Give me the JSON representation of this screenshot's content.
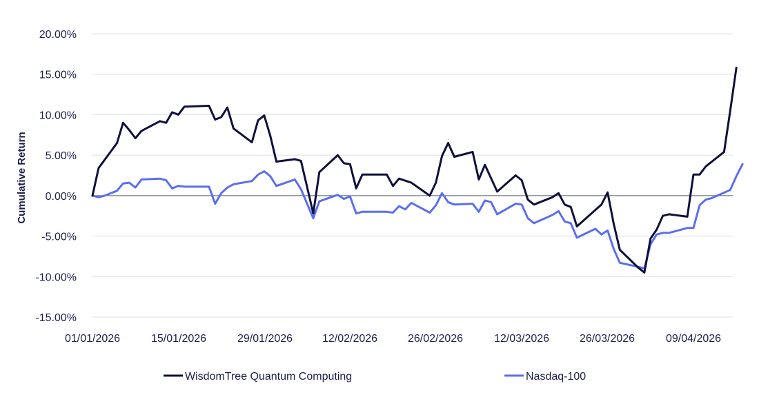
{
  "chart_data": {
    "type": "line",
    "title": "",
    "xlabel": "",
    "ylabel": "Cumulative Return",
    "ylim": [
      -15,
      20
    ],
    "yticks": [
      "20.00%",
      "15.00%",
      "10.00%",
      "5.00%",
      "0.00%",
      "-5.00%",
      "-10.00%",
      "-15.00%"
    ],
    "xticks": [
      "01/01/2026",
      "15/01/2026",
      "29/01/2026",
      "12/02/2026",
      "26/02/2026",
      "12/03/2026",
      "26/03/2026",
      "09/04/2026"
    ],
    "x_range": [
      "2026-01-01",
      "2026-04-17"
    ],
    "grid": "horizontal",
    "legend_position": "bottom",
    "colors": {
      "WisdomTree Quantum Computing": "#0f0f3d",
      "Nasdaq-100": "#5b6ef0"
    },
    "series": [
      {
        "name": "WisdomTree Quantum Computing",
        "points": [
          [
            "2026-01-01",
            0.0
          ],
          [
            "2026-01-02",
            3.4
          ],
          [
            "2026-01-05",
            6.5
          ],
          [
            "2026-01-06",
            9.0
          ],
          [
            "2026-01-07",
            8.1
          ],
          [
            "2026-01-08",
            7.1
          ],
          [
            "2026-01-09",
            8.0
          ],
          [
            "2026-01-12",
            9.2
          ],
          [
            "2026-01-13",
            9.0
          ],
          [
            "2026-01-14",
            10.3
          ],
          [
            "2026-01-15",
            10.0
          ],
          [
            "2026-01-16",
            11.0
          ],
          [
            "2026-01-20",
            11.1
          ],
          [
            "2026-01-21",
            9.4
          ],
          [
            "2026-01-22",
            9.7
          ],
          [
            "2026-01-23",
            10.9
          ],
          [
            "2026-01-24",
            8.3
          ],
          [
            "2026-01-27",
            6.6
          ],
          [
            "2026-01-28",
            9.3
          ],
          [
            "2026-01-29",
            9.9
          ],
          [
            "2026-01-30",
            7.4
          ],
          [
            "2026-01-31",
            4.2
          ],
          [
            "2026-02-03",
            4.5
          ],
          [
            "2026-02-04",
            4.3
          ],
          [
            "2026-02-06",
            -2.2
          ],
          [
            "2026-02-07",
            2.9
          ],
          [
            "2026-02-10",
            5.0
          ],
          [
            "2026-02-11",
            4.0
          ],
          [
            "2026-02-12",
            3.9
          ],
          [
            "2026-02-13",
            0.9
          ],
          [
            "2026-02-14",
            2.6
          ],
          [
            "2026-02-17",
            2.6
          ],
          [
            "2026-02-18",
            2.6
          ],
          [
            "2026-02-19",
            1.2
          ],
          [
            "2026-02-20",
            2.1
          ],
          [
            "2026-02-22",
            1.6
          ],
          [
            "2026-02-25",
            0.0
          ],
          [
            "2026-02-26",
            1.6
          ],
          [
            "2026-02-27",
            4.9
          ],
          [
            "2026-02-28",
            6.5
          ],
          [
            "2026-03-01",
            4.8
          ],
          [
            "2026-03-04",
            5.4
          ],
          [
            "2026-03-05",
            2.0
          ],
          [
            "2026-03-06",
            3.8
          ],
          [
            "2026-03-08",
            0.5
          ],
          [
            "2026-03-11",
            2.5
          ],
          [
            "2026-03-12",
            1.9
          ],
          [
            "2026-03-13",
            -0.5
          ],
          [
            "2026-03-14",
            -1.1
          ],
          [
            "2026-03-17",
            -0.2
          ],
          [
            "2026-03-18",
            0.3
          ],
          [
            "2026-03-19",
            -1.1
          ],
          [
            "2026-03-20",
            -1.4
          ],
          [
            "2026-03-21",
            -3.8
          ],
          [
            "2026-03-25",
            -1.1
          ],
          [
            "2026-03-26",
            0.4
          ],
          [
            "2026-03-27",
            -3.5
          ],
          [
            "2026-03-28",
            -6.7
          ],
          [
            "2026-03-31",
            -8.9
          ],
          [
            "2026-04-01",
            -9.5
          ],
          [
            "2026-04-02",
            -5.3
          ],
          [
            "2026-04-03",
            -4.2
          ],
          [
            "2026-04-04",
            -2.5
          ],
          [
            "2026-04-05",
            -2.3
          ],
          [
            "2026-04-08",
            -2.6
          ],
          [
            "2026-04-09",
            2.6
          ],
          [
            "2026-04-10",
            2.6
          ],
          [
            "2026-04-11",
            3.6
          ],
          [
            "2026-04-14",
            5.4
          ],
          [
            "2026-04-15",
            10.5
          ],
          [
            "2026-04-16",
            15.8
          ]
        ]
      },
      {
        "name": "Nasdaq-100",
        "points": [
          [
            "2026-01-01",
            0.0
          ],
          [
            "2026-01-02",
            -0.2
          ],
          [
            "2026-01-03",
            0.0
          ],
          [
            "2026-01-05",
            0.6
          ],
          [
            "2026-01-06",
            1.5
          ],
          [
            "2026-01-07",
            1.6
          ],
          [
            "2026-01-08",
            1.0
          ],
          [
            "2026-01-09",
            2.0
          ],
          [
            "2026-01-12",
            2.1
          ],
          [
            "2026-01-13",
            1.9
          ],
          [
            "2026-01-14",
            0.9
          ],
          [
            "2026-01-15",
            1.2
          ],
          [
            "2026-01-16",
            1.1
          ],
          [
            "2026-01-20",
            1.1
          ],
          [
            "2026-01-21",
            -1.0
          ],
          [
            "2026-01-22",
            0.3
          ],
          [
            "2026-01-23",
            1.0
          ],
          [
            "2026-01-24",
            1.4
          ],
          [
            "2026-01-27",
            1.8
          ],
          [
            "2026-01-28",
            2.6
          ],
          [
            "2026-01-29",
            3.0
          ],
          [
            "2026-01-30",
            2.4
          ],
          [
            "2026-01-31",
            1.2
          ],
          [
            "2026-02-03",
            2.0
          ],
          [
            "2026-02-04",
            0.8
          ],
          [
            "2026-02-05",
            -1.0
          ],
          [
            "2026-02-06",
            -2.8
          ],
          [
            "2026-02-07",
            -0.7
          ],
          [
            "2026-02-10",
            0.1
          ],
          [
            "2026-02-11",
            -0.4
          ],
          [
            "2026-02-12",
            -0.1
          ],
          [
            "2026-02-13",
            -2.2
          ],
          [
            "2026-02-14",
            -2.0
          ],
          [
            "2026-02-18",
            -2.0
          ],
          [
            "2026-02-19",
            -2.1
          ],
          [
            "2026-02-20",
            -1.3
          ],
          [
            "2026-02-21",
            -1.7
          ],
          [
            "2026-02-22",
            -0.9
          ],
          [
            "2026-02-25",
            -2.1
          ],
          [
            "2026-02-26",
            -1.2
          ],
          [
            "2026-02-27",
            0.3
          ],
          [
            "2026-02-28",
            -0.8
          ],
          [
            "2026-03-01",
            -1.1
          ],
          [
            "2026-03-04",
            -1.0
          ],
          [
            "2026-03-05",
            -2.0
          ],
          [
            "2026-03-06",
            -0.6
          ],
          [
            "2026-03-07",
            -0.8
          ],
          [
            "2026-03-08",
            -2.3
          ],
          [
            "2026-03-11",
            -1.0
          ],
          [
            "2026-03-12",
            -1.1
          ],
          [
            "2026-03-13",
            -2.8
          ],
          [
            "2026-03-14",
            -3.4
          ],
          [
            "2026-03-17",
            -2.4
          ],
          [
            "2026-03-18",
            -1.9
          ],
          [
            "2026-03-19",
            -3.2
          ],
          [
            "2026-03-20",
            -3.4
          ],
          [
            "2026-03-21",
            -5.2
          ],
          [
            "2026-03-24",
            -4.1
          ],
          [
            "2026-03-25",
            -4.8
          ],
          [
            "2026-03-26",
            -4.3
          ],
          [
            "2026-03-27",
            -6.6
          ],
          [
            "2026-03-28",
            -8.3
          ],
          [
            "2026-03-31",
            -8.8
          ],
          [
            "2026-04-01",
            -9.0
          ],
          [
            "2026-04-02",
            -6.0
          ],
          [
            "2026-04-03",
            -4.8
          ],
          [
            "2026-04-04",
            -4.6
          ],
          [
            "2026-04-05",
            -4.6
          ],
          [
            "2026-04-08",
            -4.0
          ],
          [
            "2026-04-09",
            -4.0
          ],
          [
            "2026-04-10",
            -1.2
          ],
          [
            "2026-04-11",
            -0.5
          ],
          [
            "2026-04-12",
            -0.3
          ],
          [
            "2026-04-15",
            0.7
          ],
          [
            "2026-04-16",
            2.4
          ],
          [
            "2026-04-17",
            3.9
          ]
        ]
      }
    ]
  }
}
